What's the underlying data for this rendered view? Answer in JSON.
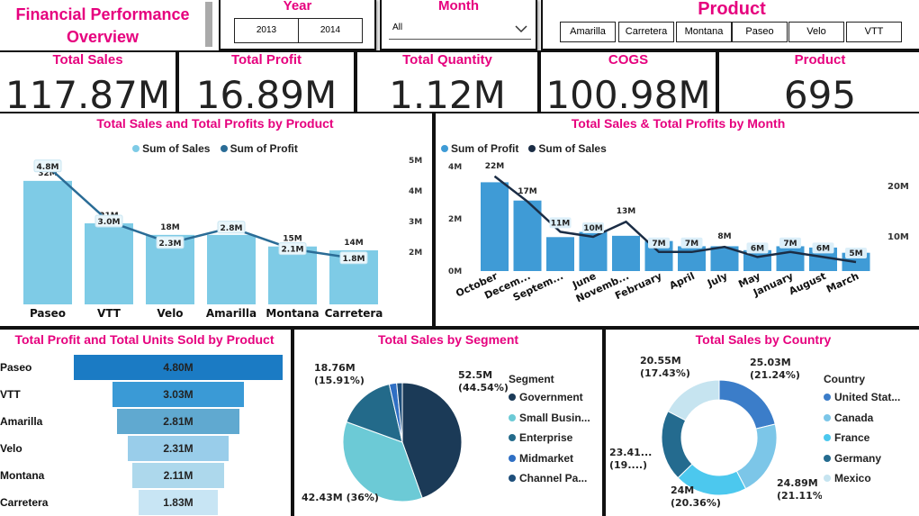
{
  "header": {
    "title_line1": "Financial Performance",
    "title_line2": "Overview"
  },
  "year_filter": {
    "title": "Year",
    "options": [
      "2013",
      "2014"
    ]
  },
  "month_filter": {
    "title": "Month",
    "value": "All"
  },
  "product_filter": {
    "title": "Product",
    "options": [
      "Amarilla",
      "Carretera",
      "Montana",
      "Paseo",
      "Velo",
      "VTT"
    ]
  },
  "kpis": [
    {
      "title": "Total Sales",
      "value": "117.87M"
    },
    {
      "title": "Total Profit",
      "value": "16.89M"
    },
    {
      "title": "Total Quantity",
      "value": "1.12M"
    },
    {
      "title": "COGS",
      "value": "100.98M"
    },
    {
      "title": "Product",
      "value": "695"
    }
  ],
  "colors": {
    "accent": "#e6007e",
    "sales_light": "#7ecbe6",
    "profit_dark": "#2a6c96",
    "month_bar": "#3f9bd6",
    "month_line": "#1b2d45"
  },
  "chart_data": [
    {
      "type": "bar",
      "title": "Total Sales and Total Profits by Product",
      "legend": [
        "Sum of  Sales",
        "Sum of  Profit"
      ],
      "legend_position": "top",
      "categories": [
        "Paseo",
        "VTT",
        "Velo",
        "Amarilla",
        "Montana",
        "Carretera"
      ],
      "series": [
        {
          "name": "Sum of  Sales",
          "values": [
            32,
            21,
            18,
            18,
            15,
            14
          ],
          "labels": [
            "32M",
            "21M",
            "18M",
            "18M",
            "15M",
            "14M"
          ]
        },
        {
          "name": "Sum of  Profit",
          "values": [
            4.8,
            3.0,
            2.3,
            2.8,
            2.1,
            1.8
          ],
          "labels": [
            "4.8M",
            "3.0M",
            "2.3M",
            "2.8M",
            "2.1M",
            "1.8M"
          ]
        }
      ],
      "y2_ticks": [
        "5M",
        "4M",
        "3M",
        "2M"
      ],
      "y2lim": [
        0,
        5
      ]
    },
    {
      "type": "bar",
      "title": "Total Sales & Total Profits by Month",
      "legend": [
        "Sum of  Profit",
        "Sum of   Sales"
      ],
      "legend_position": "top",
      "categories": [
        "October",
        "Decem...",
        "Septem...",
        "June",
        "Novemb...",
        "February",
        "April",
        "July",
        "May",
        "January",
        "August",
        "March"
      ],
      "series": [
        {
          "name": "Sum of  Profit",
          "values": [
            3.4,
            2.7,
            1.3,
            1.5,
            1.35,
            1.15,
            0.95,
            0.95,
            0.8,
            0.95,
            0.9,
            0.7
          ]
        },
        {
          "name": "Sum of   Sales",
          "values": [
            22,
            17,
            11,
            10,
            13,
            7,
            7,
            8,
            6,
            7,
            6,
            5
          ],
          "labels": [
            "22M",
            "17M",
            "11M",
            "10M",
            "13M",
            "7M",
            "7M",
            "8M",
            "6M",
            "7M",
            "6M",
            "5M"
          ]
        }
      ],
      "y_ticks": [
        "4M",
        "2M",
        "0M"
      ],
      "ylim": [
        0,
        4
      ],
      "y2_ticks": [
        "20M",
        "10M"
      ],
      "y2lim": [
        0,
        30
      ]
    },
    {
      "type": "bar",
      "title": "Total Profit and Total Units Sold by Product",
      "categories": [
        "Paseo",
        "VTT",
        "Amarilla",
        "Velo",
        "Montana",
        "Carretera"
      ],
      "values": [
        4.8,
        3.03,
        2.81,
        2.31,
        2.11,
        1.83
      ],
      "labels": [
        "4.80M",
        "3.03M",
        "2.81M",
        "2.31M",
        "2.11M",
        "1.83M"
      ]
    },
    {
      "type": "pie",
      "title": "Total Sales by Segment",
      "legend_title": "Segment",
      "legend_position": "right",
      "slices": [
        {
          "name": "Government",
          "value": 52.5,
          "label": "52.5M",
          "pct": "(44.54%)",
          "color": "#1b3a57"
        },
        {
          "name": "Small Busin...",
          "value": 42.43,
          "label": "42.43M (36%)",
          "pct": "",
          "color": "#6ccad6"
        },
        {
          "name": "Enterprise",
          "value": 18.76,
          "label": "18.76M",
          "pct": "(15.91%)",
          "color": "#236a8a"
        },
        {
          "name": "Midmarket",
          "value": 2.38,
          "label": "",
          "pct": "",
          "color": "#2f6fc4"
        },
        {
          "name": "Channel Pa...",
          "value": 1.8,
          "label": "",
          "pct": "",
          "color": "#1e4e7a"
        }
      ]
    },
    {
      "type": "pie",
      "title": "Total Sales by Country",
      "legend_title": "Country",
      "legend_position": "right",
      "slices": [
        {
          "name": "United Stat...",
          "value": 25.03,
          "label": "25.03M",
          "pct": "(21.24%)",
          "color": "#3b7dc9"
        },
        {
          "name": "Canada",
          "value": 24.89,
          "label": "24.89M",
          "pct": "(21.11%)",
          "color": "#7cc6e8"
        },
        {
          "name": "France",
          "value": 24.0,
          "label": "24M",
          "pct": "(20.36%)",
          "color": "#4cc8ee"
        },
        {
          "name": "Germany",
          "value": 23.41,
          "label": "23.41...",
          "pct": "(19....)",
          "color": "#246b8f"
        },
        {
          "name": "Mexico",
          "value": 20.55,
          "label": "20.55M",
          "pct": "(17.43%)",
          "color": "#c6e4f0"
        }
      ]
    }
  ]
}
